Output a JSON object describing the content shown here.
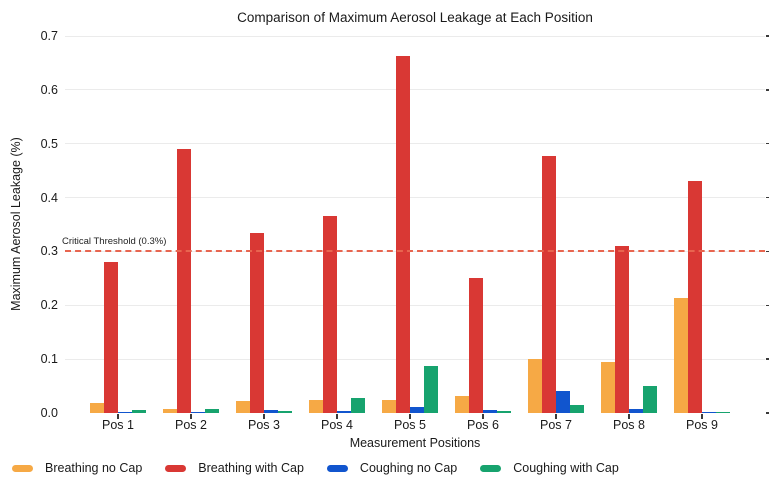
{
  "chart_data": {
    "type": "bar",
    "title": "Comparison of Maximum Aerosol Leakage at Each Position",
    "xlabel": "Measurement Positions",
    "ylabel": "Maximum Aerosol Leakage (%)",
    "ylim": [
      0,
      0.7
    ],
    "yticks": [
      0.0,
      0.1,
      0.2,
      0.3,
      0.4,
      0.5,
      0.6,
      0.7
    ],
    "grid": true,
    "legend_position": "bottom",
    "categories": [
      "Pos 1",
      "Pos 2",
      "Pos 3",
      "Pos 4",
      "Pos 5",
      "Pos 6",
      "Pos 7",
      "Pos 8",
      "Pos 9"
    ],
    "series": [
      {
        "name": "Breathing no Cap",
        "color": "#F6A945",
        "values": [
          0.018,
          0.007,
          0.022,
          0.025,
          0.025,
          0.032,
          0.101,
          0.094,
          0.213
        ]
      },
      {
        "name": "Breathing with Cap",
        "color": "#D93834",
        "values": [
          0.281,
          0.49,
          0.335,
          0.365,
          0.663,
          0.25,
          0.478,
          0.31,
          0.43
        ]
      },
      {
        "name": "Coughing no Cap",
        "color": "#1155CE",
        "values": [
          0.002,
          0.002,
          0.005,
          0.004,
          0.012,
          0.005,
          0.04,
          0.007,
          0.001
        ]
      },
      {
        "name": "Coughing with Cap",
        "color": "#17A36E",
        "values": [
          0.005,
          0.007,
          0.004,
          0.028,
          0.087,
          0.004,
          0.015,
          0.05,
          0.001
        ]
      }
    ],
    "threshold": {
      "value": 0.3,
      "label": "Critical Threshold (0.3%)",
      "color": "#E8654F"
    }
  }
}
